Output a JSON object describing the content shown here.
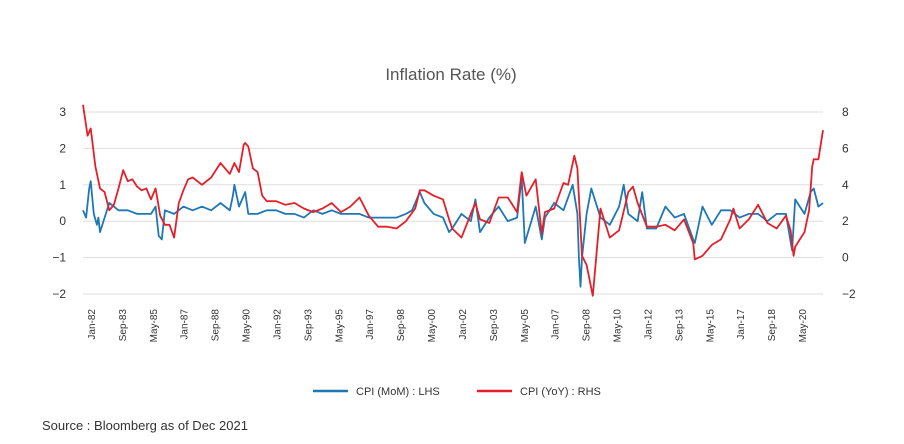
{
  "source": "Source : Bloomberg as of Dec 2021",
  "colors": {
    "mom": "#1f77b4",
    "yoy": "#e3202a",
    "grid": "#dddddd"
  },
  "chart_data": {
    "type": "line",
    "title": "Inflation Rate (%)",
    "x_tick_labels": [
      "Jan-82",
      "Sep-83",
      "May-85",
      "Jan-87",
      "Sep-88",
      "May-90",
      "Jan-92",
      "Sep-93",
      "May-95",
      "Jan-97",
      "Sep-98",
      "May-00",
      "Jan-02",
      "Sep-03",
      "May-05",
      "Jan-07",
      "Sep-08",
      "May-10",
      "Jan-12",
      "Sep-13",
      "May-15",
      "Jan-17",
      "Sep-18",
      "May-20"
    ],
    "y_left": {
      "label": "CPI (MoM) : LHS",
      "min": -2,
      "max": 3,
      "ticks": [
        3,
        2,
        1,
        0,
        -1,
        -2
      ],
      "tick_labels": [
        "3",
        "2",
        "1",
        "0",
        "−1",
        "−2"
      ]
    },
    "y_right": {
      "label": "CPI (YoY) : RHS",
      "min": -2,
      "max": 8,
      "ticks": [
        8,
        6,
        4,
        2,
        0,
        -2
      ],
      "tick_labels": [
        "8",
        "6",
        "4",
        "2",
        "0",
        "−2"
      ]
    },
    "series": [
      {
        "name": "CPI (MoM) : LHS",
        "axis": "left",
        "color": "#1f77b4",
        "points": [
          [
            "1982-01",
            0.3
          ],
          [
            "1982-03",
            0.1
          ],
          [
            "1982-05",
            0.9
          ],
          [
            "1982-06",
            1.1
          ],
          [
            "1982-08",
            0.2
          ],
          [
            "1982-10",
            -0.1
          ],
          [
            "1982-11",
            0.1
          ],
          [
            "1982-12",
            -0.3
          ],
          [
            "1983-03",
            0.1
          ],
          [
            "1983-06",
            0.5
          ],
          [
            "1983-09",
            0.4
          ],
          [
            "1983-12",
            0.3
          ],
          [
            "1984-06",
            0.3
          ],
          [
            "1984-12",
            0.2
          ],
          [
            "1985-06",
            0.2
          ],
          [
            "1985-09",
            0.2
          ],
          [
            "1985-12",
            0.4
          ],
          [
            "1986-02",
            -0.4
          ],
          [
            "1986-04",
            -0.5
          ],
          [
            "1986-06",
            0.3
          ],
          [
            "1986-12",
            0.2
          ],
          [
            "1987-06",
            0.4
          ],
          [
            "1987-12",
            0.3
          ],
          [
            "1988-06",
            0.4
          ],
          [
            "1988-12",
            0.3
          ],
          [
            "1989-06",
            0.5
          ],
          [
            "1989-12",
            0.3
          ],
          [
            "1990-02",
            0.7
          ],
          [
            "1990-03",
            1.0
          ],
          [
            "1990-06",
            0.4
          ],
          [
            "1990-10",
            0.8
          ],
          [
            "1990-12",
            0.2
          ],
          [
            "1991-06",
            0.2
          ],
          [
            "1991-12",
            0.3
          ],
          [
            "1992-06",
            0.3
          ],
          [
            "1992-12",
            0.2
          ],
          [
            "1993-06",
            0.2
          ],
          [
            "1993-12",
            0.1
          ],
          [
            "1994-06",
            0.3
          ],
          [
            "1994-12",
            0.2
          ],
          [
            "1995-06",
            0.3
          ],
          [
            "1995-12",
            0.2
          ],
          [
            "1996-06",
            0.2
          ],
          [
            "1996-12",
            0.2
          ],
          [
            "1997-06",
            0.1
          ],
          [
            "1997-12",
            0.1
          ],
          [
            "1998-06",
            0.1
          ],
          [
            "1998-12",
            0.1
          ],
          [
            "1999-06",
            0.2
          ],
          [
            "1999-10",
            0.3
          ],
          [
            "2000-03",
            0.8
          ],
          [
            "2000-06",
            0.5
          ],
          [
            "2000-12",
            0.2
          ],
          [
            "2001-06",
            0.1
          ],
          [
            "2001-10",
            -0.3
          ],
          [
            "2001-12",
            -0.2
          ],
          [
            "2002-06",
            0.2
          ],
          [
            "2002-12",
            0.0
          ],
          [
            "2003-03",
            0.6
          ],
          [
            "2003-06",
            -0.3
          ],
          [
            "2003-12",
            0.1
          ],
          [
            "2004-06",
            0.4
          ],
          [
            "2004-12",
            0.0
          ],
          [
            "2005-06",
            0.1
          ],
          [
            "2005-09",
            1.2
          ],
          [
            "2005-11",
            -0.6
          ],
          [
            "2006-06",
            0.4
          ],
          [
            "2006-10",
            -0.5
          ],
          [
            "2006-12",
            0.1
          ],
          [
            "2007-06",
            0.5
          ],
          [
            "2007-12",
            0.3
          ],
          [
            "2008-06",
            1.0
          ],
          [
            "2008-09",
            0.2
          ],
          [
            "2008-10",
            -1.0
          ],
          [
            "2008-11",
            -1.8
          ],
          [
            "2008-12",
            -1.0
          ],
          [
            "2009-03",
            0.2
          ],
          [
            "2009-06",
            0.9
          ],
          [
            "2009-12",
            0.1
          ],
          [
            "2010-06",
            -0.1
          ],
          [
            "2010-12",
            0.4
          ],
          [
            "2011-03",
            1.0
          ],
          [
            "2011-06",
            0.2
          ],
          [
            "2011-12",
            0.0
          ],
          [
            "2012-03",
            0.8
          ],
          [
            "2012-06",
            -0.2
          ],
          [
            "2012-12",
            -0.2
          ],
          [
            "2013-06",
            0.4
          ],
          [
            "2013-12",
            0.1
          ],
          [
            "2014-06",
            0.2
          ],
          [
            "2014-12",
            -0.5
          ],
          [
            "2015-01",
            -0.6
          ],
          [
            "2015-06",
            0.4
          ],
          [
            "2015-12",
            -0.1
          ],
          [
            "2016-06",
            0.3
          ],
          [
            "2016-12",
            0.3
          ],
          [
            "2017-06",
            0.1
          ],
          [
            "2017-12",
            0.2
          ],
          [
            "2018-06",
            0.2
          ],
          [
            "2018-12",
            0.0
          ],
          [
            "2019-06",
            0.2
          ],
          [
            "2019-12",
            0.2
          ],
          [
            "2020-04",
            -0.8
          ],
          [
            "2020-06",
            0.6
          ],
          [
            "2020-12",
            0.2
          ],
          [
            "2021-04",
            0.8
          ],
          [
            "2021-06",
            0.9
          ],
          [
            "2021-09",
            0.4
          ],
          [
            "2021-12",
            0.5
          ]
        ]
      },
      {
        "name": "CPI (YoY) : RHS",
        "axis": "right",
        "color": "#e3202a",
        "points": [
          [
            "1982-01",
            8.4
          ],
          [
            "1982-04",
            6.7
          ],
          [
            "1982-06",
            7.1
          ],
          [
            "1982-09",
            5.0
          ],
          [
            "1982-12",
            3.8
          ],
          [
            "1983-03",
            3.6
          ],
          [
            "1983-06",
            2.6
          ],
          [
            "1983-09",
            2.9
          ],
          [
            "1983-12",
            3.8
          ],
          [
            "1984-03",
            4.8
          ],
          [
            "1984-06",
            4.2
          ],
          [
            "1984-09",
            4.3
          ],
          [
            "1984-12",
            3.9
          ],
          [
            "1985-03",
            3.7
          ],
          [
            "1985-06",
            3.8
          ],
          [
            "1985-09",
            3.2
          ],
          [
            "1985-12",
            3.8
          ],
          [
            "1986-03",
            2.3
          ],
          [
            "1986-06",
            1.8
          ],
          [
            "1986-09",
            1.8
          ],
          [
            "1986-12",
            1.1
          ],
          [
            "1987-03",
            3.0
          ],
          [
            "1987-06",
            3.7
          ],
          [
            "1987-09",
            4.3
          ],
          [
            "1987-12",
            4.4
          ],
          [
            "1988-06",
            4.0
          ],
          [
            "1988-12",
            4.4
          ],
          [
            "1989-06",
            5.2
          ],
          [
            "1989-12",
            4.6
          ],
          [
            "1990-03",
            5.2
          ],
          [
            "1990-06",
            4.7
          ],
          [
            "1990-09",
            6.2
          ],
          [
            "1990-10",
            6.3
          ],
          [
            "1990-12",
            6.1
          ],
          [
            "1991-03",
            4.9
          ],
          [
            "1991-06",
            4.7
          ],
          [
            "1991-09",
            3.4
          ],
          [
            "1991-12",
            3.1
          ],
          [
            "1992-06",
            3.1
          ],
          [
            "1992-12",
            2.9
          ],
          [
            "1993-06",
            3.0
          ],
          [
            "1993-12",
            2.7
          ],
          [
            "1994-06",
            2.5
          ],
          [
            "1994-12",
            2.7
          ],
          [
            "1995-06",
            3.0
          ],
          [
            "1995-12",
            2.5
          ],
          [
            "1996-06",
            2.8
          ],
          [
            "1996-12",
            3.3
          ],
          [
            "1997-06",
            2.3
          ],
          [
            "1997-12",
            1.7
          ],
          [
            "1998-06",
            1.7
          ],
          [
            "1998-12",
            1.6
          ],
          [
            "1999-06",
            2.0
          ],
          [
            "1999-12",
            2.7
          ],
          [
            "2000-03",
            3.7
          ],
          [
            "2000-06",
            3.7
          ],
          [
            "2000-12",
            3.4
          ],
          [
            "2001-06",
            3.2
          ],
          [
            "2001-10",
            2.1
          ],
          [
            "2001-12",
            1.6
          ],
          [
            "2002-06",
            1.1
          ],
          [
            "2002-12",
            2.4
          ],
          [
            "2003-03",
            3.0
          ],
          [
            "2003-06",
            2.1
          ],
          [
            "2003-12",
            1.9
          ],
          [
            "2004-06",
            3.3
          ],
          [
            "2004-12",
            3.3
          ],
          [
            "2005-06",
            2.5
          ],
          [
            "2005-09",
            4.7
          ],
          [
            "2005-12",
            3.4
          ],
          [
            "2006-06",
            4.3
          ],
          [
            "2006-10",
            1.3
          ],
          [
            "2006-12",
            2.5
          ],
          [
            "2007-06",
            2.7
          ],
          [
            "2007-12",
            4.1
          ],
          [
            "2008-03",
            4.0
          ],
          [
            "2008-07",
            5.6
          ],
          [
            "2008-09",
            4.9
          ],
          [
            "2008-12",
            0.1
          ],
          [
            "2009-03",
            -0.4
          ],
          [
            "2009-07",
            -2.1
          ],
          [
            "2009-12",
            2.7
          ],
          [
            "2010-06",
            1.1
          ],
          [
            "2010-12",
            1.5
          ],
          [
            "2011-06",
            3.6
          ],
          [
            "2011-09",
            3.9
          ],
          [
            "2011-12",
            3.0
          ],
          [
            "2012-06",
            1.7
          ],
          [
            "2012-12",
            1.7
          ],
          [
            "2013-06",
            1.8
          ],
          [
            "2013-12",
            1.5
          ],
          [
            "2014-06",
            2.1
          ],
          [
            "2014-12",
            0.8
          ],
          [
            "2015-01",
            -0.1
          ],
          [
            "2015-06",
            0.1
          ],
          [
            "2015-12",
            0.7
          ],
          [
            "2016-06",
            1.0
          ],
          [
            "2016-12",
            2.1
          ],
          [
            "2017-02",
            2.7
          ],
          [
            "2017-06",
            1.6
          ],
          [
            "2017-12",
            2.1
          ],
          [
            "2018-06",
            2.9
          ],
          [
            "2018-12",
            1.9
          ],
          [
            "2019-06",
            1.6
          ],
          [
            "2019-12",
            2.3
          ],
          [
            "2020-03",
            1.5
          ],
          [
            "2020-05",
            0.1
          ],
          [
            "2020-06",
            0.6
          ],
          [
            "2020-12",
            1.4
          ],
          [
            "2021-03",
            2.6
          ],
          [
            "2021-05",
            5.0
          ],
          [
            "2021-06",
            5.4
          ],
          [
            "2021-09",
            5.4
          ],
          [
            "2021-12",
            7.0
          ]
        ]
      }
    ]
  }
}
